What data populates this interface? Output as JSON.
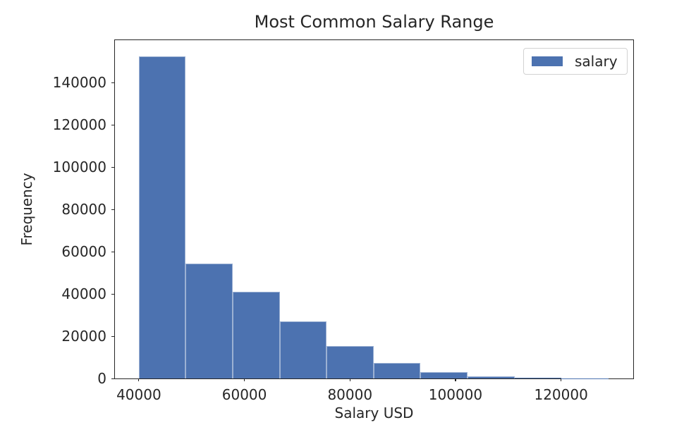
{
  "chart_data": {
    "type": "bar",
    "subtype": "histogram",
    "title": "Most Common Salary Range",
    "xlabel": "Salary USD",
    "ylabel": "Frequency",
    "legend": {
      "position": "upper right",
      "entries": [
        {
          "label": "salary",
          "color": "#4c72b0"
        }
      ]
    },
    "bar_color": "#4c72b0",
    "axis_color": "#262626",
    "text_color": "#262626",
    "grid": false,
    "bin_edges": [
      40000,
      48900,
      57800,
      66700,
      75600,
      84500,
      93400,
      102300,
      111200,
      120100,
      129000
    ],
    "frequencies": [
      152500,
      54500,
      41100,
      27000,
      15500,
      7500,
      3100,
      1100,
      250,
      80
    ],
    "xlim": [
      35500,
      133700
    ],
    "ylim": [
      0,
      160000
    ],
    "xticks": [
      40000,
      60000,
      80000,
      100000,
      120000
    ],
    "xtick_labels": [
      "40000",
      "60000",
      "80000",
      "100000",
      "120000"
    ],
    "yticks": [
      0,
      20000,
      40000,
      60000,
      80000,
      100000,
      120000,
      140000
    ],
    "ytick_labels": [
      "0",
      "20000",
      "40000",
      "60000",
      "80000",
      "100000",
      "120000",
      "140000"
    ]
  }
}
